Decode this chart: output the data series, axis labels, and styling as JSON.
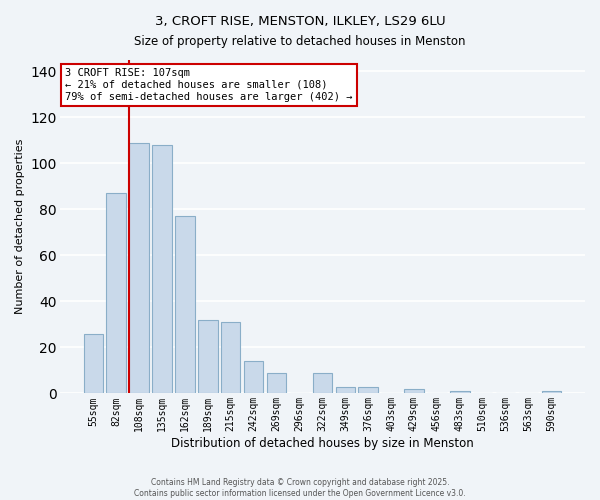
{
  "title": "3, CROFT RISE, MENSTON, ILKLEY, LS29 6LU",
  "subtitle": "Size of property relative to detached houses in Menston",
  "xlabel": "Distribution of detached houses by size in Menston",
  "ylabel": "Number of detached properties",
  "categories": [
    "55sqm",
    "82sqm",
    "108sqm",
    "135sqm",
    "162sqm",
    "189sqm",
    "215sqm",
    "242sqm",
    "269sqm",
    "296sqm",
    "322sqm",
    "349sqm",
    "376sqm",
    "403sqm",
    "429sqm",
    "456sqm",
    "483sqm",
    "510sqm",
    "536sqm",
    "563sqm",
    "590sqm"
  ],
  "values": [
    26,
    87,
    109,
    108,
    77,
    32,
    31,
    14,
    9,
    0,
    9,
    3,
    3,
    0,
    2,
    0,
    1,
    0,
    0,
    0,
    1
  ],
  "bar_color": "#c9d9ea",
  "bar_edge_color": "#8aaec8",
  "marker_line_index": 2,
  "ylim": [
    0,
    145
  ],
  "yticks": [
    0,
    20,
    40,
    60,
    80,
    100,
    120,
    140
  ],
  "annotation_title": "3 CROFT RISE: 107sqm",
  "annotation_line1": "← 21% of detached houses are smaller (108)",
  "annotation_line2": "79% of semi-detached houses are larger (402) →",
  "marker_color": "#cc0000",
  "annotation_box_color": "#ffffff",
  "annotation_box_edge": "#cc0000",
  "footer1": "Contains HM Land Registry data © Crown copyright and database right 2025.",
  "footer2": "Contains public sector information licensed under the Open Government Licence v3.0.",
  "background_color": "#f0f4f8",
  "grid_color": "#ffffff",
  "title_fontsize": 9.5,
  "subtitle_fontsize": 8.5
}
